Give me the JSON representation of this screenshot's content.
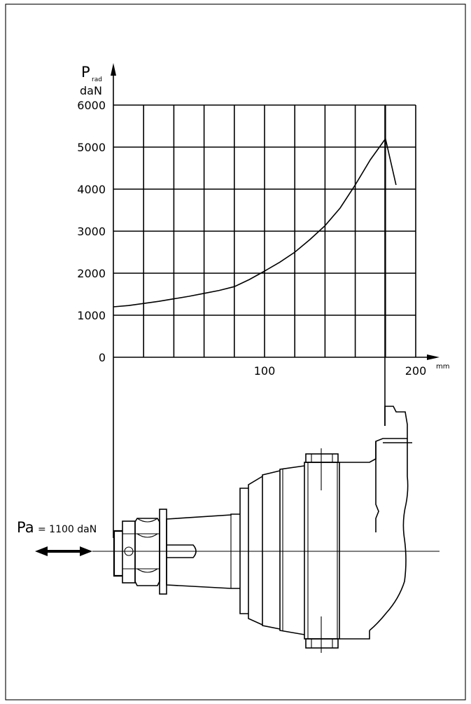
{
  "chart_data": {
    "type": "line",
    "ylabel_main": "P",
    "ylabel_sub": "rad",
    "ylabel_unit": "daN",
    "xlabel_unit": "mm",
    "xlim": [
      0,
      200
    ],
    "ylim": [
      0,
      6000
    ],
    "y_ticks": [
      "6000",
      "5000",
      "4000",
      "3000",
      "2000",
      "1000",
      "0"
    ],
    "y_tick_values": [
      6000,
      5000,
      4000,
      3000,
      2000,
      1000,
      0
    ],
    "x_ticks": [
      "100",
      "200"
    ],
    "x_tick_values": [
      100,
      200
    ],
    "grid": true,
    "x_grid_step": 20,
    "series": [
      {
        "x": [
          0,
          10,
          20,
          30,
          40,
          50,
          60,
          70,
          80,
          90,
          100,
          110,
          120,
          130,
          140,
          150,
          160,
          170,
          180,
          187
        ],
        "y": [
          1200,
          1230,
          1280,
          1330,
          1390,
          1450,
          1520,
          1590,
          1680,
          1850,
          2050,
          2260,
          2500,
          2800,
          3130,
          3550,
          4100,
          4700,
          5200,
          4100
        ]
      }
    ]
  },
  "annotation": {
    "force_label": "Pa",
    "force_value": "= 1100 daN"
  }
}
